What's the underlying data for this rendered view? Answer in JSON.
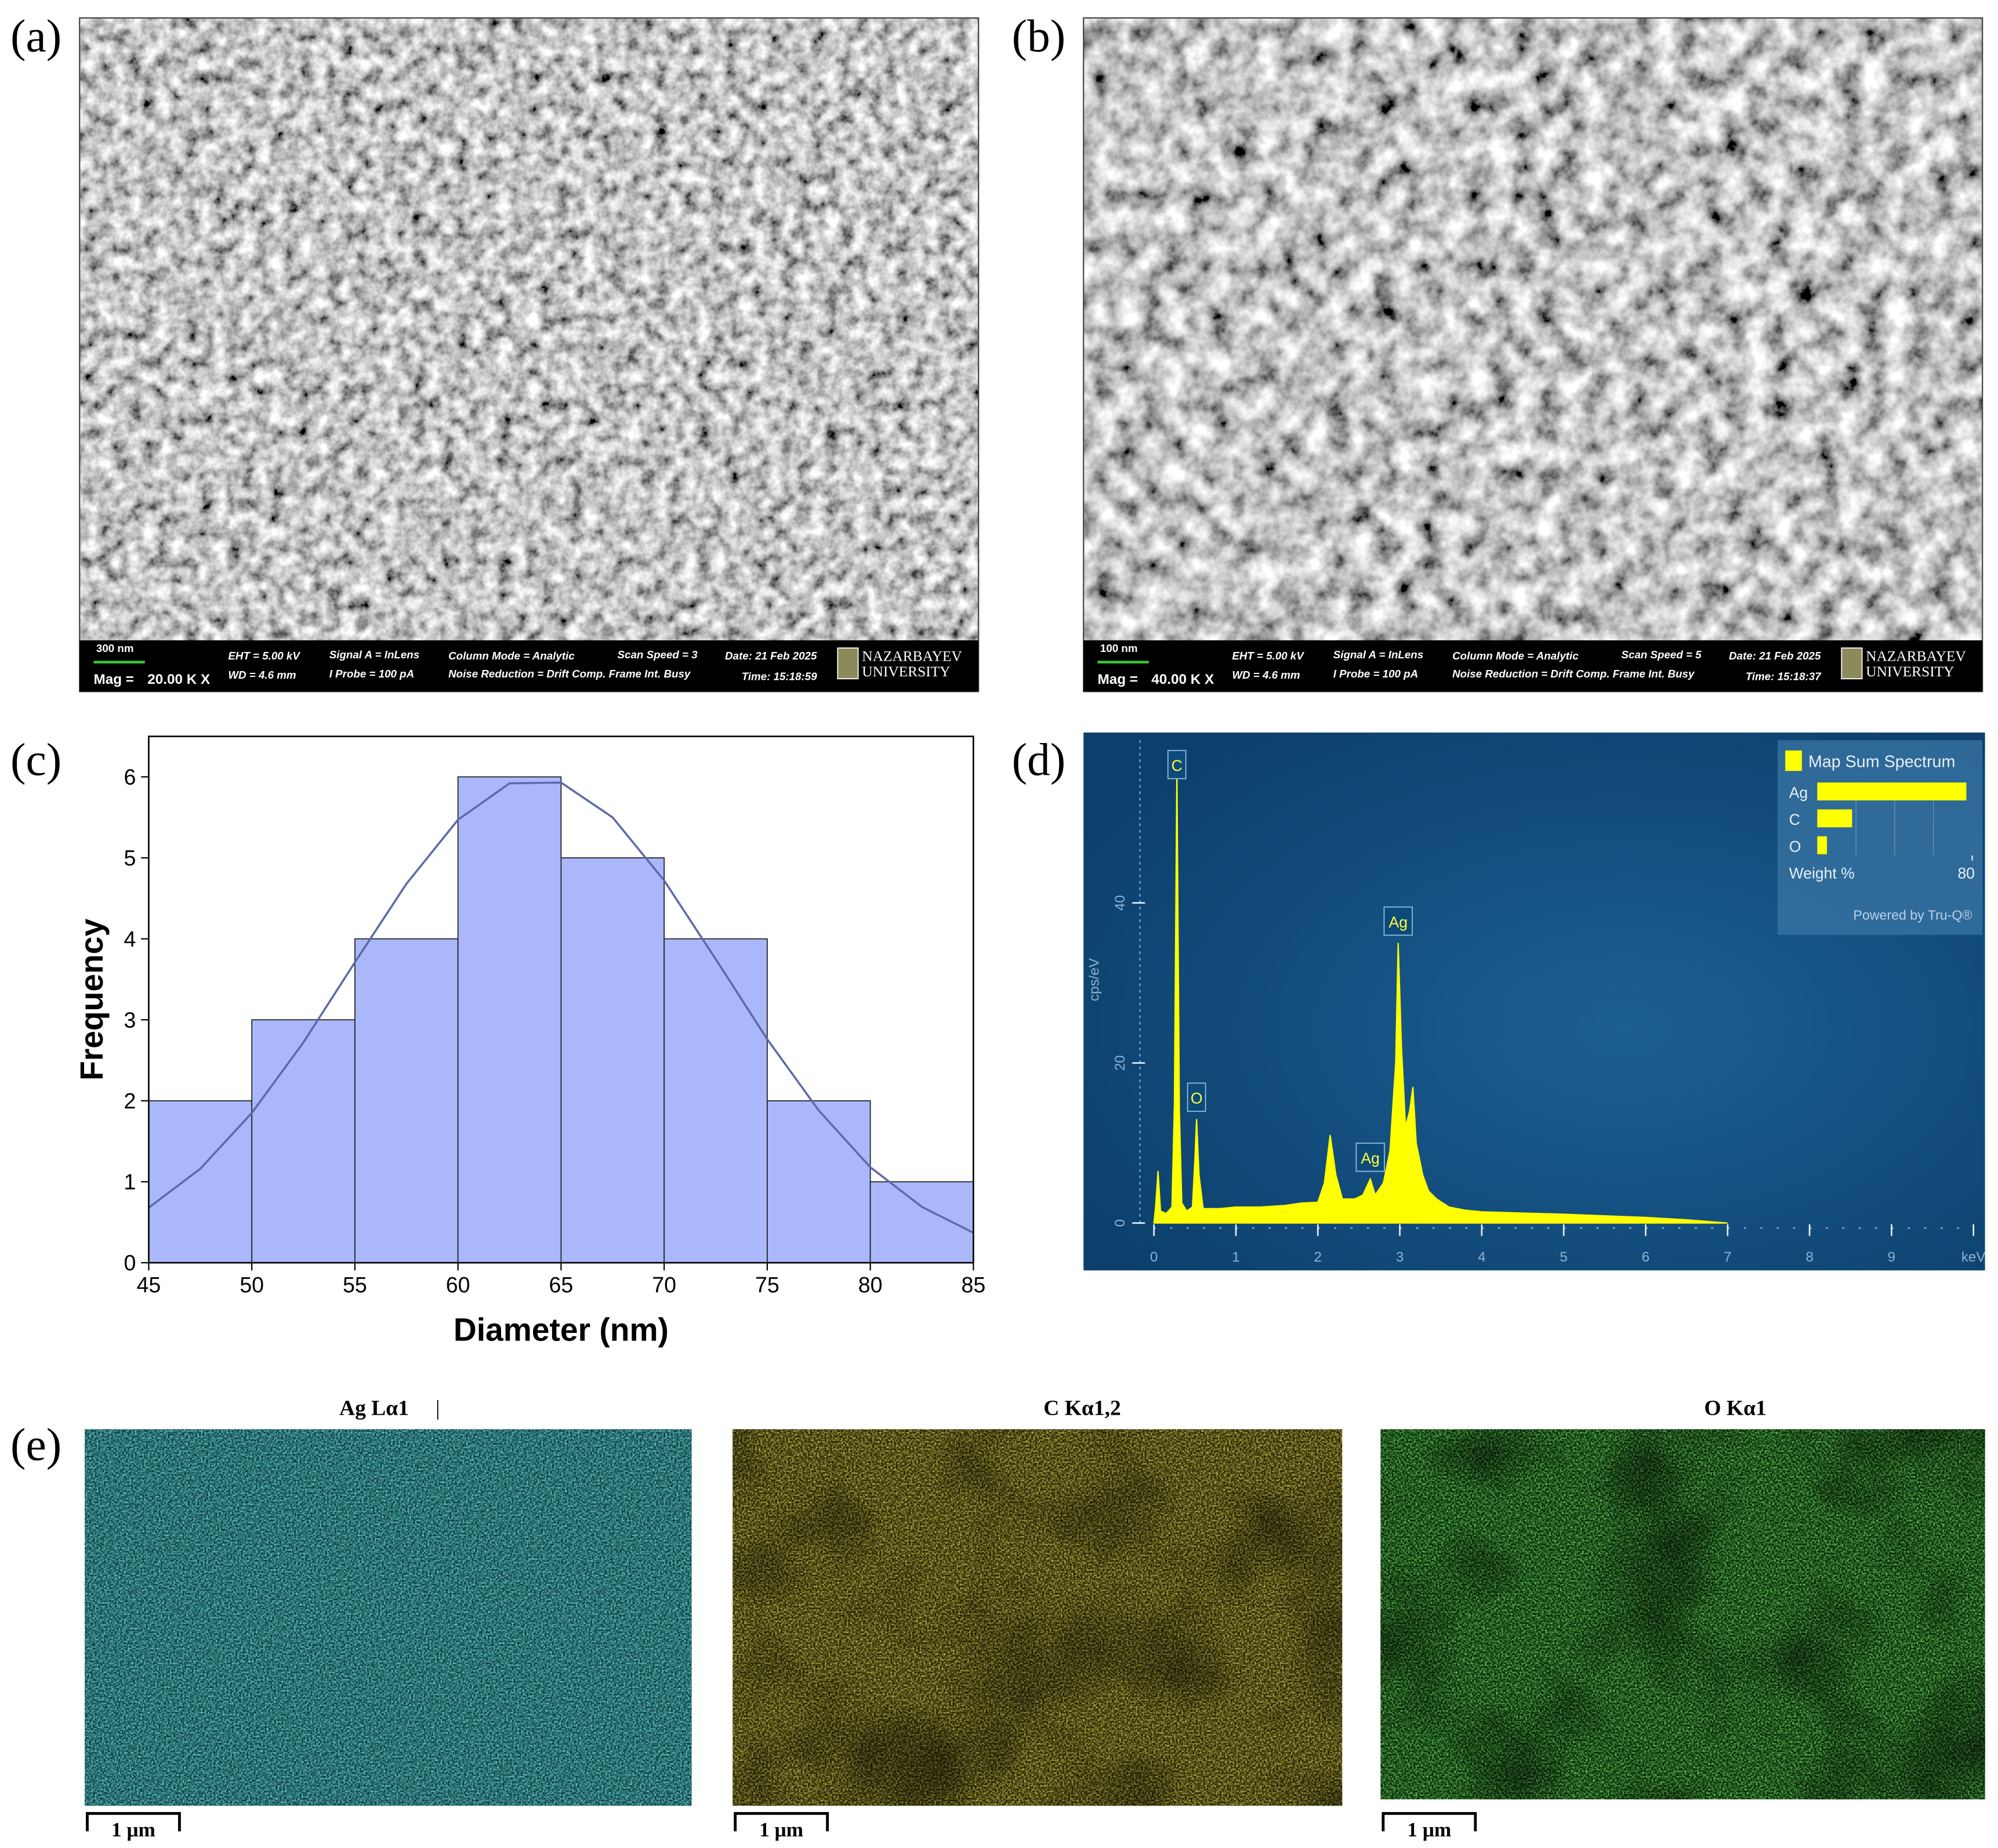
{
  "panel_labels": [
    "(a)",
    "(b)",
    "(c)",
    "(d)",
    "(e)"
  ],
  "sem_images": [
    {
      "scale_bar": "300 nm",
      "mag_label": "Mag =",
      "mag": "20.00 K X",
      "eht": "EHT =  5.00 kV",
      "wd": "WD =  4.6 mm",
      "signal": "Signal A = InLens",
      "probe": "I Probe =    100 pA",
      "column": "Column Mode = Analytic",
      "noise": "Noise Reduction = Drift Comp. Frame Int. Busy",
      "scan": "Scan Speed = 3",
      "date": "Date: 21 Feb 2025",
      "time": "Time: 15:18:59",
      "logo": [
        "NAZARBAYEV",
        "UNIVERSITY"
      ]
    },
    {
      "scale_bar": "100 nm",
      "mag_label": "Mag =",
      "mag": "40.00 K X",
      "eht": "EHT =  5.00 kV",
      "wd": "WD =  4.6 mm",
      "signal": "Signal A = InLens",
      "probe": "I Probe =    100 pA",
      "column": "Column Mode = Analytic",
      "noise": "Noise Reduction = Drift Comp. Frame Int. Busy",
      "scan": "Scan Speed = 5",
      "date": "Date: 21 Feb 2025",
      "time": "Time: 15:18:37",
      "logo": [
        "NAZARBAYEV",
        "UNIVERSITY"
      ]
    }
  ],
  "chart_data": [
    {
      "type": "histogram",
      "bins": [
        45,
        50,
        55,
        60,
        65,
        70,
        75,
        80,
        85
      ],
      "values": [
        2,
        3,
        4,
        6,
        5,
        4,
        2,
        1
      ],
      "color": "#aab8fb",
      "xlabel": "Diameter (nm)",
      "ylabel": "Frequency",
      "xlim": [
        45,
        85
      ],
      "ylim": [
        0,
        6.5
      ],
      "xticks": [
        45,
        50,
        55,
        60,
        65,
        70,
        75,
        80,
        85
      ],
      "yticks": [
        0,
        1,
        2,
        3,
        4,
        5,
        6
      ],
      "fit": {
        "color": "#5b6aa8",
        "x": [
          45,
          47.5,
          50,
          52.5,
          55,
          57.5,
          60,
          62.5,
          65,
          67.5,
          70,
          72.5,
          75,
          77.5,
          80,
          82.5,
          85
        ],
        "values": [
          0.68,
          1.16,
          1.85,
          2.72,
          3.71,
          4.68,
          5.47,
          5.92,
          5.93,
          5.5,
          4.72,
          3.75,
          2.76,
          1.88,
          1.18,
          0.69,
          0.37
        ]
      }
    },
    {
      "type": "area",
      "color": "#ffff00",
      "ylabel": "cps/eV",
      "xlim": [
        0,
        10
      ],
      "ylim": [
        0,
        60
      ],
      "xticks": [
        0,
        1,
        2,
        3,
        4,
        5,
        6,
        7,
        8,
        9,
        {
          "value": 10,
          "label": "keV"
        }
      ],
      "yticks": [
        0,
        20,
        40
      ],
      "x": [
        0,
        0.02,
        0.05,
        0.08,
        0.15,
        0.22,
        0.25,
        0.28,
        0.31,
        0.34,
        0.4,
        0.47,
        0.5,
        0.52,
        0.55,
        0.6,
        0.8,
        1.0,
        1.3,
        1.6,
        1.8,
        2.0,
        2.08,
        2.15,
        2.22,
        2.3,
        2.45,
        2.55,
        2.64,
        2.7,
        2.8,
        2.88,
        2.95,
        2.98,
        3.02,
        3.07,
        3.12,
        3.16,
        3.2,
        3.28,
        3.35,
        3.45,
        3.6,
        3.8,
        4,
        5,
        6,
        6.5,
        7
      ],
      "values": [
        0,
        2,
        6.5,
        1.5,
        1.2,
        2,
        15,
        57,
        14,
        2.5,
        1.5,
        2,
        8,
        13,
        6,
        1.8,
        1.8,
        2,
        2,
        2.2,
        2.5,
        2.6,
        5,
        11,
        6,
        3,
        3,
        3.5,
        5.5,
        3.5,
        5,
        9,
        20,
        35,
        22,
        12,
        14,
        17,
        10,
        6,
        4,
        3,
        2,
        1.6,
        1.4,
        1.1,
        0.7,
        0.4,
        0
      ],
      "annotations": [
        {
          "text": "C",
          "x": 0.28
        },
        {
          "text": "O",
          "x": 0.52
        },
        {
          "text": "Ag",
          "x": 2.64
        },
        {
          "text": "Ag",
          "x": 2.98
        }
      ]
    },
    {
      "type": "bar",
      "orientation": "horizontal",
      "title": "Map Sum Spectrum",
      "categories": [
        "Ag",
        "C",
        "O"
      ],
      "values": [
        77,
        18,
        5
      ],
      "color": "#ffff00",
      "xlabel": "Weight %",
      "xlim": [
        0,
        80
      ],
      "xticks": [
        80
      ],
      "note": "Powered by Tru-Q®"
    }
  ],
  "maps": [
    {
      "title": "Ag Lα1",
      "marker": "|",
      "scale_bar": "1 μm"
    },
    {
      "title": "C Kα1,2",
      "scale_bar": "1 μm"
    },
    {
      "title": "O Kα1",
      "scale_bar": "1 μm"
    }
  ]
}
